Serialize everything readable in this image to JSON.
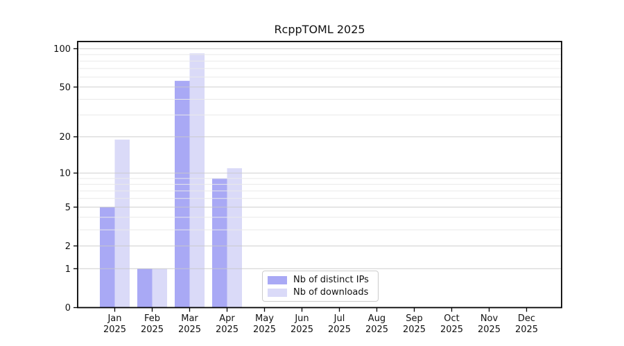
{
  "chart_data": {
    "type": "bar",
    "title": "RcppTOML 2025",
    "categories": [
      "Jan",
      "Feb",
      "Mar",
      "Apr",
      "May",
      "Jun",
      "Jul",
      "Aug",
      "Sep",
      "Oct",
      "Nov",
      "Dec"
    ],
    "year_label": "2025",
    "series": [
      {
        "name": "Nb of distinct IPs",
        "color": "#a9a9f5",
        "values": [
          5,
          1,
          56,
          9,
          0,
          0,
          0,
          0,
          0,
          0,
          0,
          0
        ]
      },
      {
        "name": "Nb of downloads",
        "color": "#dadaf8",
        "values": [
          19,
          1,
          92,
          11,
          0,
          0,
          0,
          0,
          0,
          0,
          0,
          0
        ]
      }
    ],
    "y_axis": {
      "scale": "log1p",
      "tick_labels": [
        "0",
        "1",
        "2",
        "5",
        "10",
        "20",
        "50",
        "100"
      ],
      "tick_values": [
        0,
        1,
        2,
        5,
        10,
        20,
        50,
        100
      ],
      "minor_gridline_values": [
        3,
        4,
        6,
        7,
        8,
        9,
        30,
        40,
        60,
        70,
        80,
        90
      ],
      "range_top_value": 115
    },
    "legend": {
      "position": "lower-center",
      "entries": [
        "Nb of distinct IPs",
        "Nb of downloads"
      ]
    },
    "grid": true,
    "colors": {
      "bar_distinct_ips": "#a9a9f5",
      "bar_downloads": "#dadaf8",
      "major_grid": "#c9c9c9",
      "minor_grid": "#e9e9e9",
      "axis": "#000000",
      "tick_text": "#111111",
      "background": "#ffffff"
    }
  }
}
